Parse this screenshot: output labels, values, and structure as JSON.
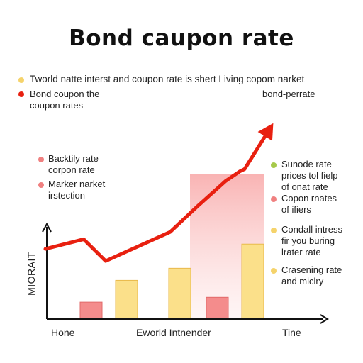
{
  "colors": {
    "yellow": "#f5d36b",
    "red": "#e82010",
    "pink": "#f08080",
    "green": "#a6c94a",
    "bar_yellow": "#fbe08a",
    "bar_pink": "#f48c8c",
    "bar_edge": "#e8b94a"
  },
  "top_legend": [
    {
      "icon": "yellow-dot",
      "text": "Tworld natte interst and coupon rate is shert Living copom narket"
    },
    {
      "icon": "red-dot",
      "text": "Bond coupon the\ncoupon rates"
    }
  ],
  "arrow_label": "bond-perrate",
  "left_legend": [
    {
      "icon": "pink-dot",
      "text": "Backtily rate\ncorpon rate"
    },
    {
      "icon": "pink-dot",
      "text": "Marker narket\nirstection"
    }
  ],
  "right_legend": [
    {
      "icon": "green-dot",
      "text": "Sunode rate\nprices tol fielp\nof onat rate"
    },
    {
      "icon": "pink-dot",
      "text": "Copon rnates\nof ifiers"
    },
    {
      "icon": "yellow-dot",
      "text": "Condall intress\nfir you buring\nlrater rate"
    },
    {
      "icon": "yellow-dot",
      "text": "Crasening rate\nand miclry"
    }
  ],
  "chart_data": {
    "type": "bar",
    "title": "Bond caupon rate",
    "ylabel": "MIORAIT",
    "x_ticks": [
      "Hone",
      "Eworld Intnender",
      "Tine"
    ],
    "bars": [
      {
        "color": "pink",
        "value": 14
      },
      {
        "color": "yellow",
        "value": 32
      },
      {
        "color": "yellow",
        "value": 42
      },
      {
        "color": "pink",
        "value": 18
      },
      {
        "color": "yellow",
        "value": 62
      }
    ],
    "shaded_region": {
      "top_value": 120
    },
    "line": {
      "color": "red",
      "values": [
        58,
        66,
        48,
        72,
        94,
        114,
        122,
        124,
        155
      ],
      "arrow_at_end": true
    },
    "ylim": [
      0,
      170
    ],
    "grid": false
  }
}
